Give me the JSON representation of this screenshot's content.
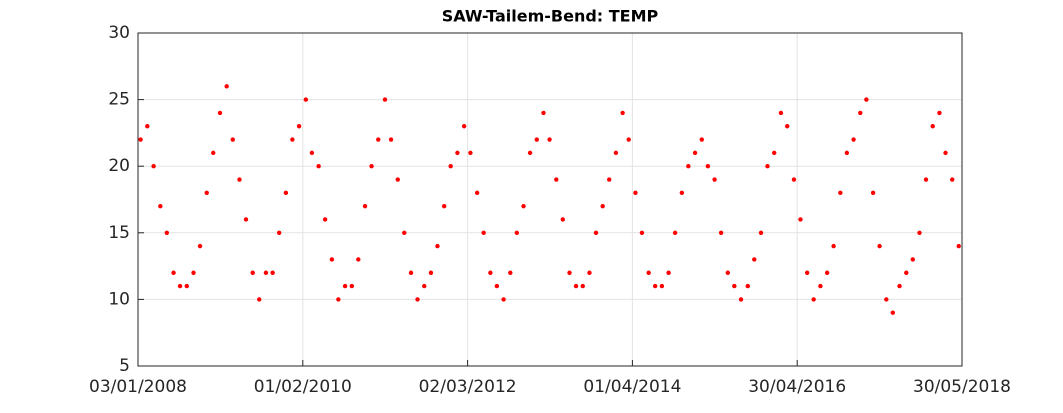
{
  "chart_data": {
    "type": "scatter",
    "title": "SAW-Tailem-Bend: TEMP",
    "series": [
      {
        "color": "#ff0000",
        "x": [
          "15/01/2008",
          "15/02/2008",
          "15/03/2008",
          "15/04/2008",
          "15/05/2008",
          "15/06/2008",
          "15/07/2008",
          "15/08/2008",
          "15/09/2008",
          "15/10/2008",
          "15/11/2008",
          "15/12/2008",
          "15/01/2009",
          "15/02/2009",
          "15/03/2009",
          "15/04/2009",
          "15/05/2009",
          "15/06/2009",
          "15/07/2009",
          "15/08/2009",
          "15/09/2009",
          "15/10/2009",
          "15/11/2009",
          "15/12/2009",
          "15/01/2010",
          "15/02/2010",
          "15/03/2010",
          "15/04/2010",
          "15/05/2010",
          "15/06/2010",
          "15/07/2010",
          "15/08/2010",
          "15/09/2010",
          "15/10/2010",
          "15/11/2010",
          "15/12/2010",
          "15/01/2011",
          "15/02/2011",
          "15/03/2011",
          "15/04/2011",
          "15/05/2011",
          "15/06/2011",
          "15/07/2011",
          "15/08/2011",
          "15/09/2011",
          "15/10/2011",
          "15/11/2011",
          "15/12/2011",
          "15/01/2012",
          "15/02/2012",
          "15/03/2012",
          "15/04/2012",
          "15/05/2012",
          "15/06/2012",
          "15/07/2012",
          "15/08/2012",
          "15/09/2012",
          "15/10/2012",
          "15/11/2012",
          "15/12/2012",
          "15/01/2013",
          "15/02/2013",
          "15/03/2013",
          "15/04/2013",
          "15/05/2013",
          "15/06/2013",
          "15/07/2013",
          "15/08/2013",
          "15/09/2013",
          "15/10/2013",
          "15/11/2013",
          "15/12/2013",
          "15/01/2014",
          "15/02/2014",
          "15/03/2014",
          "15/04/2014",
          "15/05/2014",
          "15/06/2014",
          "15/07/2014",
          "15/08/2014",
          "15/09/2014",
          "15/10/2014",
          "15/11/2014",
          "15/12/2014",
          "15/01/2015",
          "15/02/2015",
          "15/03/2015",
          "15/04/2015",
          "15/05/2015",
          "15/06/2015",
          "15/07/2015",
          "15/08/2015",
          "15/09/2015",
          "15/10/2015",
          "15/11/2015",
          "15/12/2015",
          "15/01/2016",
          "15/02/2016",
          "15/03/2016",
          "15/04/2016",
          "15/05/2016",
          "15/06/2016",
          "15/07/2016",
          "15/08/2016",
          "15/09/2016",
          "15/10/2016",
          "15/11/2016",
          "15/12/2016",
          "15/01/2017",
          "15/02/2017",
          "15/03/2017",
          "15/04/2017",
          "15/05/2017",
          "15/06/2017",
          "15/07/2017",
          "15/08/2017",
          "15/09/2017",
          "15/10/2017",
          "15/11/2017",
          "15/12/2017",
          "15/01/2018",
          "15/02/2018",
          "15/03/2018",
          "15/04/2018",
          "15/05/2018"
        ],
        "values": [
          22,
          23,
          20,
          17,
          15,
          12,
          11,
          11,
          12,
          14,
          18,
          21,
          24,
          26,
          22,
          19,
          16,
          12,
          10,
          12,
          12,
          15,
          18,
          22,
          23,
          25,
          21,
          20,
          16,
          13,
          10,
          11,
          11,
          13,
          17,
          20,
          22,
          25,
          22,
          19,
          15,
          12,
          10,
          11,
          12,
          14,
          17,
          20,
          21,
          23,
          21,
          18,
          15,
          12,
          11,
          10,
          12,
          15,
          17,
          21,
          22,
          24,
          22,
          19,
          16,
          12,
          11,
          11,
          12,
          15,
          17,
          19,
          21,
          24,
          22,
          18,
          15,
          12,
          11,
          11,
          12,
          15,
          18,
          20,
          21,
          22,
          20,
          19,
          15,
          12,
          11,
          10,
          11,
          13,
          15,
          20,
          21,
          24,
          23,
          19,
          16,
          12,
          10,
          11,
          12,
          14,
          18,
          21,
          22,
          24,
          25,
          18,
          14,
          10,
          9,
          11,
          12,
          13,
          15,
          19,
          23,
          24,
          21,
          19,
          14
        ]
      }
    ],
    "xlim": [
      "03/01/2008",
      "30/05/2018"
    ],
    "xticks": [
      "03/01/2008",
      "01/02/2010",
      "02/03/2012",
      "01/04/2014",
      "30/04/2016",
      "30/05/2018"
    ],
    "ylim": [
      5,
      30
    ],
    "yticks": [
      5,
      10,
      15,
      20,
      25,
      30
    ],
    "grid": true
  }
}
